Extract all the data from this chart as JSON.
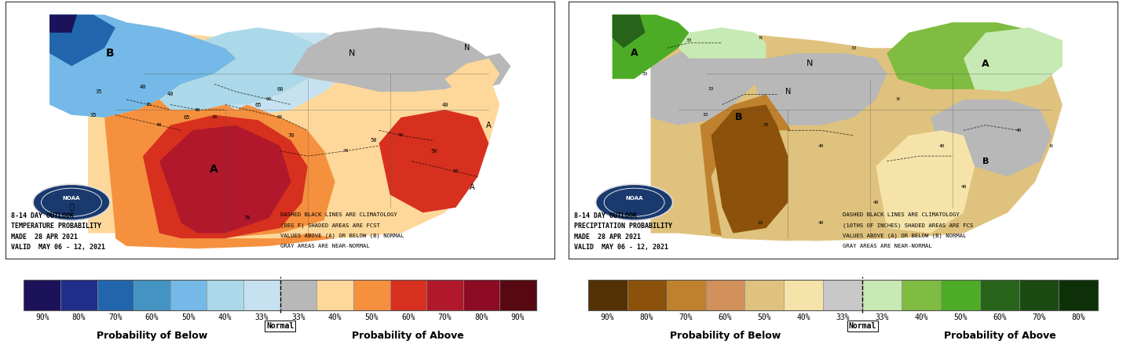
{
  "temp_colors_below": [
    "#1c1259",
    "#1f2e8a",
    "#2166ac",
    "#4393c3",
    "#74b9e7",
    "#abd9e9",
    "#c6e2f0"
  ],
  "temp_color_normal": [
    "#b8b8b8"
  ],
  "temp_colors_above": [
    "#fed89a",
    "#f5913e",
    "#d7301f",
    "#b2182b",
    "#8c0a22",
    "#580810"
  ],
  "precip_colors_below": [
    "#543005",
    "#8c510a",
    "#bf812d",
    "#d2905a",
    "#dfc27d",
    "#f5e3a9"
  ],
  "precip_color_normal": [
    "#c8c8c8"
  ],
  "precip_colors_above": [
    "#c7e9b4",
    "#7fbc41",
    "#4dac26",
    "#276419",
    "#1a4a12",
    "#0d3009"
  ],
  "temp_all_colors": [
    "#1c1259",
    "#1f2e8a",
    "#2166ac",
    "#4393c3",
    "#74b9e7",
    "#abd9e9",
    "#c6e2f0",
    "#b8b8b8",
    "#fed89a",
    "#f5913e",
    "#d7301f",
    "#b2182b",
    "#8c0a22",
    "#580810"
  ],
  "precip_all_colors": [
    "#543005",
    "#8c510a",
    "#bf812d",
    "#d2905a",
    "#dfc27d",
    "#f5e3a9",
    "#c8c8c8",
    "#c7e9b4",
    "#7fbc41",
    "#4dac26",
    "#276419",
    "#1a4a12",
    "#0d3009"
  ],
  "cb_labels": [
    "90%",
    "80%",
    "70%",
    "60%",
    "50%",
    "40%",
    "33%",
    "33%",
    "40%",
    "50%",
    "60%",
    "70%",
    "80%",
    "90%"
  ],
  "below_label": "Probability of Below",
  "above_label": "Probability of Above",
  "normal_label": "Normal",
  "left_title_line1": "8-14 DAY OUTLOOK",
  "left_title_line2": "TEMPERATURE PROBABILITY",
  "left_title_line3": "MADE  28 APR 2021",
  "left_title_line4": "VALID  MAY 06 - 12, 2021",
  "right_title_line1": "8-14 DAY OUTLOOK",
  "right_title_line2": "PRECIPITATION PROBABILITY",
  "right_title_line3": "MADE  28 APR 2021",
  "right_title_line4": "VALID  MAY 06 - 12, 2021",
  "note1": "DASHED BLACK LINES ARE CLIMATOLOGY",
  "note2_temp": "(DEG F) SHADED AREAS ARE FCST",
  "note2_precip": "(10THS OF INCHES) SHADED AREAS ARE FCS",
  "note3": "VALUES ABOVE (A) OR BELOW (B) NORMAL",
  "note4": "GRAY AREAS ARE NEAR-NORMAL",
  "bg_color": "#ffffff",
  "map_border": "#333333"
}
